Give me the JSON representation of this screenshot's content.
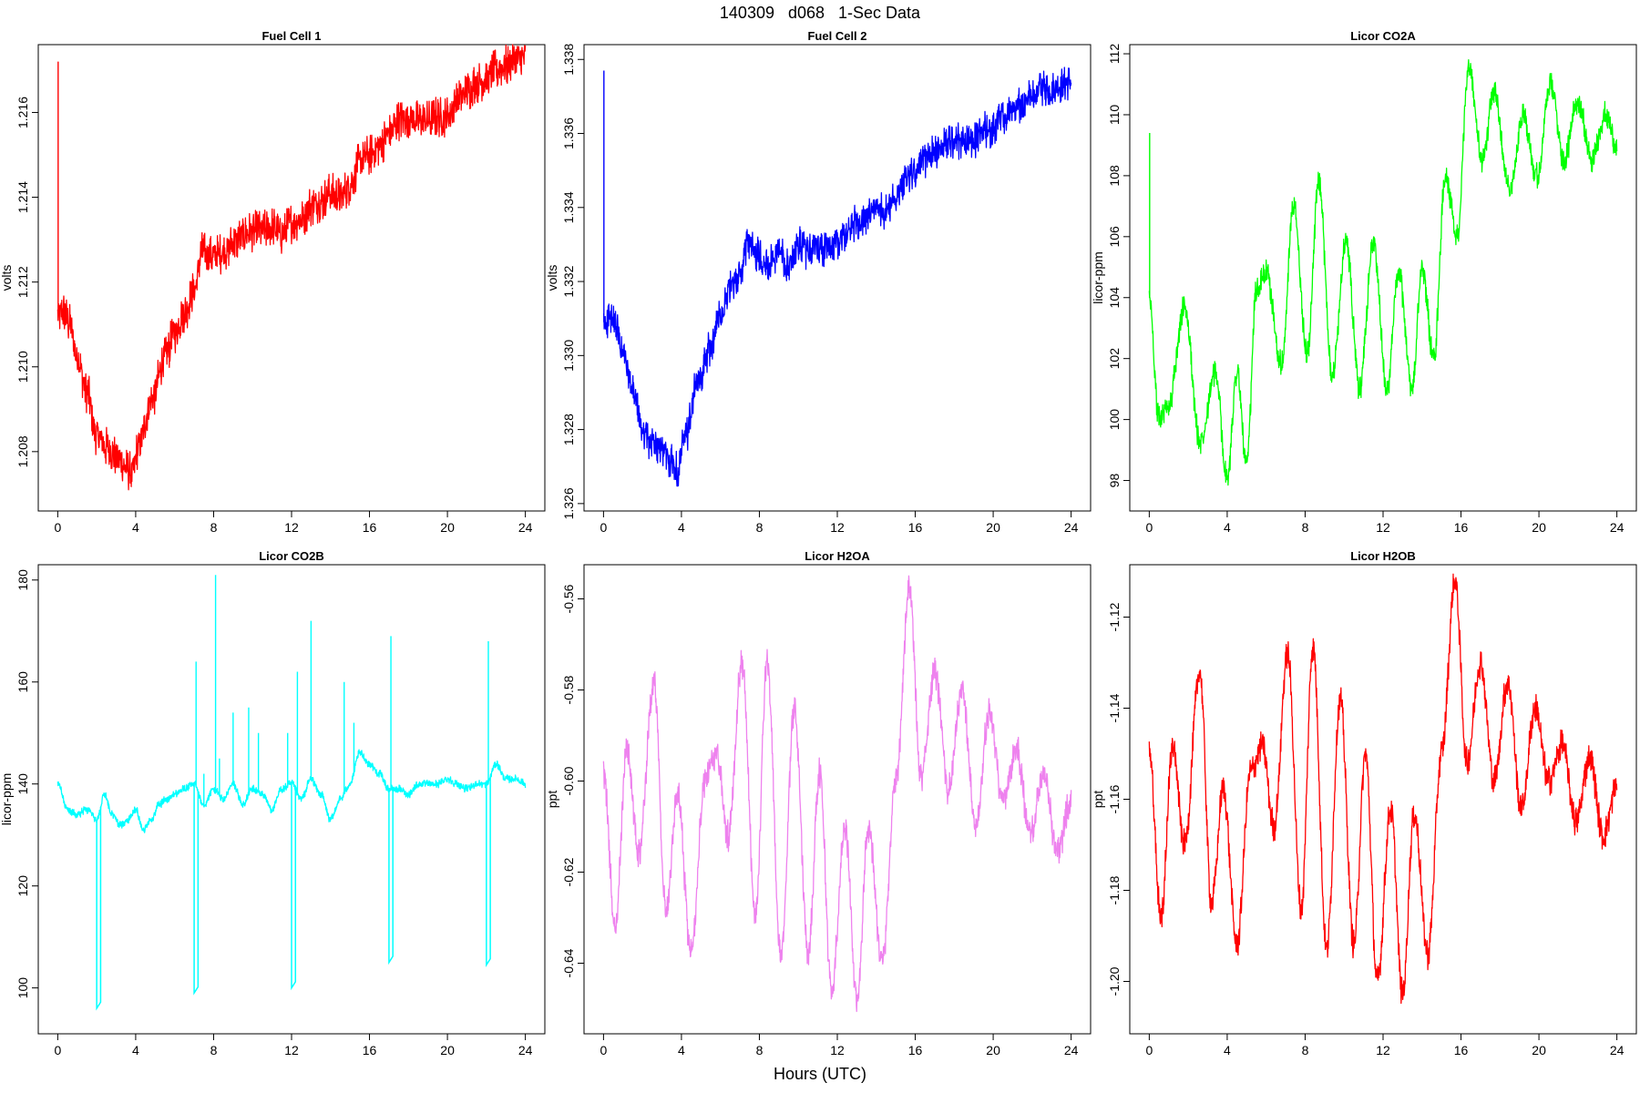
{
  "page": {
    "title": "140309   d068   1-Sec Data",
    "x_axis_title": "Hours (UTC)"
  },
  "chart_data": [
    {
      "type": "line",
      "title": "Fuel Cell 1",
      "ylabel": "volts",
      "color": "#ff0000",
      "xlim": [
        -1,
        25
      ],
      "ylim": [
        1.2066,
        1.2176
      ],
      "xticks": [
        0,
        4,
        8,
        12,
        16,
        20,
        24
      ],
      "yticks": [
        1.208,
        1.21,
        1.212,
        1.214,
        1.216
      ],
      "ytick_labels": [
        "1.208",
        "1.210",
        "1.212",
        "1.214",
        "1.216"
      ],
      "noise": 0.0005,
      "spikes": [
        {
          "x": 0.02,
          "y": 1.2172
        }
      ],
      "dips": [],
      "x": [
        0,
        0.3,
        0.6,
        1,
        1.5,
        2,
        2.5,
        3,
        3.5,
        3.8,
        4.2,
        4.8,
        5.5,
        6,
        6.5,
        7,
        7.4,
        8,
        8.5,
        9,
        9.5,
        10,
        10.5,
        11,
        11.5,
        12,
        12.5,
        13,
        13.5,
        14,
        14.5,
        15,
        15.5,
        16,
        16.5,
        17,
        17.5,
        18,
        18.5,
        19,
        19.5,
        20,
        20.5,
        21,
        21.5,
        22,
        22.5,
        23,
        23.5,
        24
      ],
      "y": [
        1.2112,
        1.2113,
        1.211,
        1.2102,
        1.2094,
        1.2084,
        1.2081,
        1.2079,
        1.2076,
        1.2075,
        1.2082,
        1.2092,
        1.2102,
        1.2108,
        1.2113,
        1.2118,
        1.2127,
        1.2126,
        1.2127,
        1.2129,
        1.2131,
        1.2132,
        1.2132,
        1.2133,
        1.2131,
        1.2134,
        1.2135,
        1.2138,
        1.2139,
        1.2141,
        1.214,
        1.2143,
        1.2148,
        1.215,
        1.2152,
        1.2155,
        1.2158,
        1.2159,
        1.2158,
        1.2158,
        1.2159,
        1.2159,
        1.2163,
        1.2165,
        1.2167,
        1.2168,
        1.217,
        1.2171,
        1.2172,
        1.2173
      ]
    },
    {
      "type": "line",
      "title": "Fuel Cell 2",
      "ylabel": "volts",
      "color": "#0000ff",
      "xlim": [
        -1,
        25
      ],
      "ylim": [
        1.3258,
        1.3384
      ],
      "xticks": [
        0,
        4,
        8,
        12,
        16,
        20,
        24
      ],
      "yticks": [
        1.326,
        1.328,
        1.33,
        1.332,
        1.334,
        1.336,
        1.338
      ],
      "ytick_labels": [
        "1.326",
        "1.328",
        "1.330",
        "1.332",
        "1.334",
        "1.336",
        "1.338"
      ],
      "noise": 0.0005,
      "spikes": [
        {
          "x": 0.02,
          "y": 1.3377
        }
      ],
      "dips": [],
      "x": [
        0,
        0.3,
        0.6,
        1,
        1.5,
        2,
        2.5,
        3,
        3.5,
        3.8,
        4.2,
        4.8,
        5.5,
        6,
        6.5,
        7,
        7.4,
        8,
        8.5,
        9,
        9.5,
        10,
        10.5,
        11,
        11.5,
        12,
        12.5,
        13,
        13.5,
        14,
        14.5,
        15,
        15.5,
        16,
        16.5,
        17,
        17.5,
        18,
        18.5,
        19,
        19.5,
        20,
        20.5,
        21,
        21.5,
        22,
        22.5,
        23,
        23.5,
        24
      ],
      "y": [
        1.3309,
        1.331,
        1.3308,
        1.33,
        1.329,
        1.328,
        1.3276,
        1.3275,
        1.3271,
        1.3269,
        1.3278,
        1.3292,
        1.3302,
        1.3311,
        1.3318,
        1.3322,
        1.333,
        1.3327,
        1.3325,
        1.3328,
        1.3324,
        1.333,
        1.3328,
        1.333,
        1.3328,
        1.3331,
        1.3333,
        1.3336,
        1.3337,
        1.334,
        1.3339,
        1.3343,
        1.3348,
        1.3349,
        1.3353,
        1.3355,
        1.3357,
        1.3358,
        1.3358,
        1.3358,
        1.3361,
        1.3361,
        1.3364,
        1.3366,
        1.3368,
        1.337,
        1.3372,
        1.3372,
        1.3373,
        1.3374
      ]
    },
    {
      "type": "line",
      "title": "Licor CO2A",
      "ylabel": "licor-ppm",
      "color": "#00ff00",
      "xlim": [
        -1,
        25
      ],
      "ylim": [
        97.0,
        112.3
      ],
      "xticks": [
        0,
        4,
        8,
        12,
        16,
        20,
        24
      ],
      "yticks": [
        98,
        100,
        102,
        104,
        106,
        108,
        110,
        112
      ],
      "ytick_labels": [
        "98",
        "100",
        "102",
        "104",
        "106",
        "108",
        "110",
        "112"
      ],
      "noise": 0.45,
      "spikes": [
        {
          "x": 0.02,
          "y": 109.4
        }
      ],
      "dips": [],
      "x": [
        0,
        0.5,
        1.0,
        1.8,
        2.6,
        3.4,
        4.0,
        4.5,
        5.0,
        5.5,
        6.0,
        6.8,
        7.4,
        8.1,
        8.7,
        9.4,
        10.1,
        10.8,
        11.5,
        12.2,
        12.8,
        13.5,
        14.0,
        14.6,
        15.2,
        15.8,
        16.4,
        17.1,
        17.7,
        18.5,
        19.2,
        19.9,
        20.6,
        21.3,
        22.0,
        22.7,
        23.4,
        24
      ],
      "y": [
        104.0,
        100.0,
        100.5,
        103.7,
        99.3,
        101.5,
        98.0,
        101.6,
        98.5,
        104.2,
        104.8,
        101.8,
        107.0,
        102.2,
        107.7,
        101.5,
        105.8,
        101.0,
        105.8,
        101.0,
        104.8,
        101.0,
        105.0,
        102.0,
        108.0,
        106.0,
        111.5,
        108.5,
        110.8,
        107.5,
        110.0,
        108.0,
        111.0,
        108.5,
        110.5,
        108.5,
        110.0,
        109.0
      ]
    },
    {
      "type": "line",
      "title": "Licor CO2B",
      "ylabel": "licor-ppm",
      "color": "#00ffff",
      "xlim": [
        -1,
        25
      ],
      "ylim": [
        91,
        183
      ],
      "xticks": [
        0,
        4,
        8,
        12,
        16,
        20,
        24
      ],
      "yticks": [
        100,
        120,
        140,
        160,
        180
      ],
      "ytick_labels": [
        "100",
        "120",
        "140",
        "160",
        "180"
      ],
      "noise": 0.8,
      "spikes": [
        {
          "x": 7.1,
          "y": 164
        },
        {
          "x": 7.5,
          "y": 142
        },
        {
          "x": 8.1,
          "y": 181
        },
        {
          "x": 8.3,
          "y": 145
        },
        {
          "x": 9.0,
          "y": 154
        },
        {
          "x": 9.8,
          "y": 155
        },
        {
          "x": 10.3,
          "y": 150
        },
        {
          "x": 11.8,
          "y": 150
        },
        {
          "x": 12.3,
          "y": 162
        },
        {
          "x": 13.0,
          "y": 172
        },
        {
          "x": 14.7,
          "y": 160
        },
        {
          "x": 15.2,
          "y": 152
        },
        {
          "x": 17.1,
          "y": 169
        },
        {
          "x": 22.1,
          "y": 168
        }
      ],
      "dips": [
        {
          "x0": 2.0,
          "x1": 2.2,
          "y": 96
        },
        {
          "x0": 7.0,
          "x1": 7.2,
          "y": 99
        },
        {
          "x0": 12.0,
          "x1": 12.2,
          "y": 100
        },
        {
          "x0": 17.0,
          "x1": 17.2,
          "y": 105
        },
        {
          "x0": 22.0,
          "x1": 22.2,
          "y": 104.5
        }
      ],
      "x": [
        0,
        0.5,
        1.0,
        1.5,
        2.0,
        2.4,
        2.8,
        3.2,
        3.6,
        4.0,
        4.4,
        4.8,
        5.2,
        5.6,
        6.0,
        6.5,
        7.0,
        7.5,
        8.0,
        8.5,
        9.0,
        9.5,
        10.0,
        10.5,
        11.0,
        11.5,
        12.0,
        12.5,
        13.0,
        13.5,
        14.0,
        14.5,
        15.0,
        15.5,
        16.0,
        16.5,
        17.0,
        17.5,
        18.0,
        18.5,
        19.0,
        19.5,
        20.0,
        20.5,
        21.0,
        21.5,
        22.0,
        22.5,
        23.0,
        23.5,
        24
      ],
      "y": [
        140,
        135,
        134,
        135,
        133,
        138,
        134,
        132,
        133,
        135,
        131,
        133,
        136,
        137,
        138,
        139,
        140,
        136,
        139,
        137,
        140,
        136,
        139,
        138,
        135,
        139,
        140,
        137,
        141,
        138,
        133,
        137,
        140,
        146,
        144,
        142,
        139,
        139,
        138,
        140,
        140,
        140,
        141,
        140,
        139,
        140,
        140,
        144,
        141,
        141,
        140
      ]
    },
    {
      "type": "line",
      "title": "Licor H2OA",
      "ylabel": "ppt",
      "color": "#ee82ee",
      "xlim": [
        -1,
        25
      ],
      "ylim": [
        -0.6555,
        -0.5525
      ],
      "xticks": [
        0,
        4,
        8,
        12,
        16,
        20,
        24
      ],
      "yticks": [
        -0.64,
        -0.62,
        -0.6,
        -0.58,
        -0.56
      ],
      "ytick_labels": [
        "-0.64",
        "-0.62",
        "-0.60",
        "-0.58",
        "-0.56"
      ],
      "noise": 0.0035,
      "spikes": [],
      "dips": [],
      "x": [
        0,
        0.6,
        1.2,
        1.8,
        2.6,
        3.2,
        3.8,
        4.5,
        5.2,
        5.8,
        6.4,
        7.1,
        7.8,
        8.4,
        9.1,
        9.8,
        10.5,
        11.1,
        11.7,
        12.4,
        13.0,
        13.6,
        14.3,
        15.0,
        15.7,
        16.3,
        17.0,
        17.7,
        18.4,
        19.1,
        19.8,
        20.5,
        21.2,
        21.9,
        22.6,
        23.3,
        24
      ],
      "y": [
        -0.598,
        -0.632,
        -0.593,
        -0.616,
        -0.578,
        -0.628,
        -0.603,
        -0.638,
        -0.6,
        -0.594,
        -0.612,
        -0.574,
        -0.629,
        -0.574,
        -0.639,
        -0.584,
        -0.638,
        -0.598,
        -0.646,
        -0.61,
        -0.648,
        -0.61,
        -0.64,
        -0.6,
        -0.558,
        -0.599,
        -0.576,
        -0.602,
        -0.58,
        -0.61,
        -0.585,
        -0.604,
        -0.593,
        -0.612,
        -0.598,
        -0.616,
        -0.604
      ]
    },
    {
      "type": "line",
      "title": "Licor H2OB",
      "ylabel": "ppt",
      "color": "#ff0000",
      "xlim": [
        -1,
        25
      ],
      "ylim": [
        -1.2115,
        -1.1085
      ],
      "xticks": [
        0,
        4,
        8,
        12,
        16,
        20,
        24
      ],
      "yticks": [
        -1.2,
        -1.18,
        -1.16,
        -1.14,
        -1.12
      ],
      "ytick_labels": [
        "-1.20",
        "-1.18",
        "-1.16",
        "-1.14",
        "-1.12"
      ],
      "noise": 0.0035,
      "spikes": [],
      "dips": [],
      "x": [
        0,
        0.6,
        1.2,
        1.8,
        2.6,
        3.2,
        3.8,
        4.5,
        5.2,
        5.8,
        6.4,
        7.1,
        7.8,
        8.4,
        9.1,
        9.8,
        10.5,
        11.1,
        11.7,
        12.4,
        13.0,
        13.6,
        14.3,
        15.0,
        15.7,
        16.3,
        17.0,
        17.7,
        18.4,
        19.1,
        19.8,
        20.5,
        21.2,
        21.9,
        22.6,
        23.3,
        24
      ],
      "y": [
        -1.15,
        -1.186,
        -1.148,
        -1.17,
        -1.132,
        -1.183,
        -1.158,
        -1.192,
        -1.154,
        -1.148,
        -1.166,
        -1.128,
        -1.184,
        -1.126,
        -1.193,
        -1.138,
        -1.192,
        -1.15,
        -1.2,
        -1.162,
        -1.203,
        -1.163,
        -1.194,
        -1.15,
        -1.112,
        -1.152,
        -1.13,
        -1.156,
        -1.134,
        -1.162,
        -1.14,
        -1.156,
        -1.148,
        -1.165,
        -1.151,
        -1.168,
        -1.157
      ]
    }
  ]
}
